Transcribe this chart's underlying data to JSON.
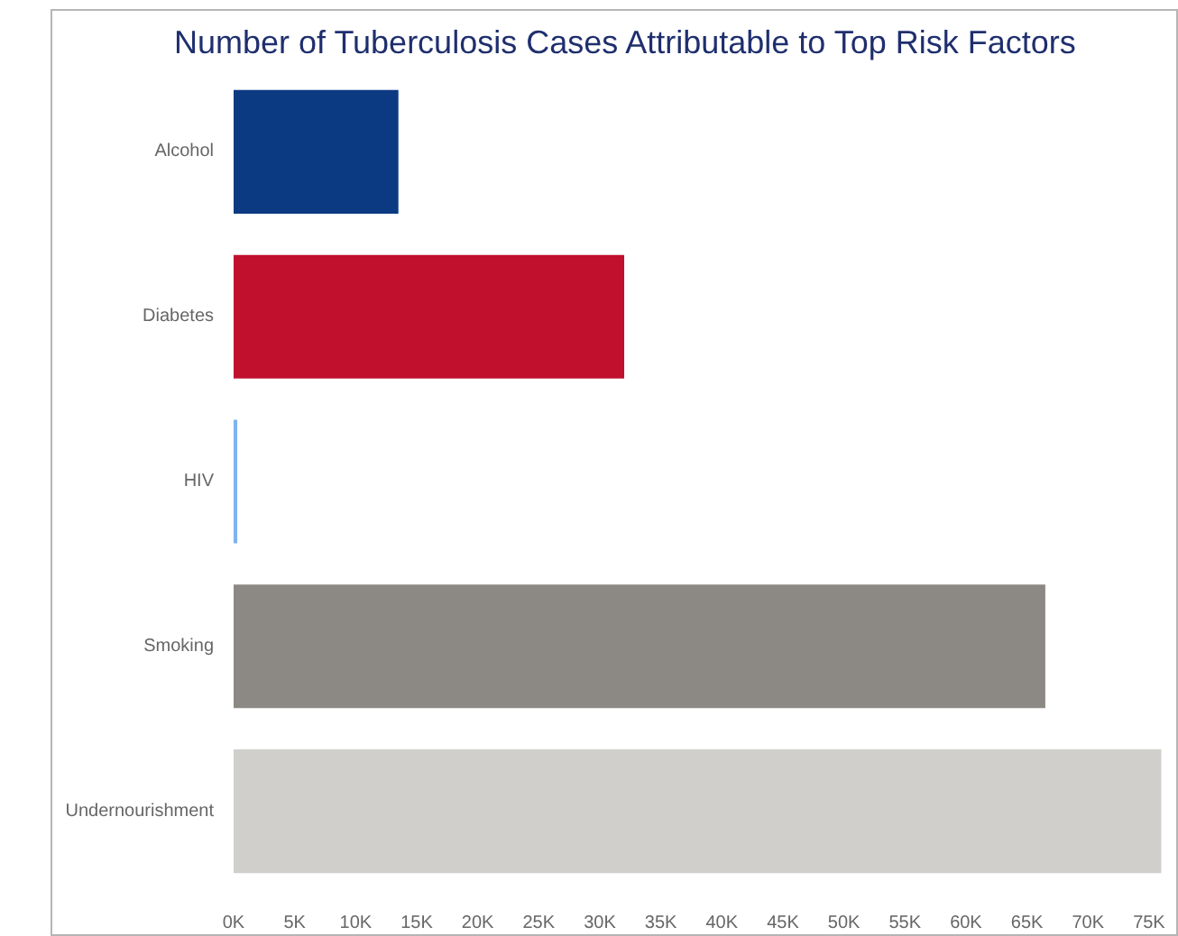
{
  "chart_data": {
    "type": "bar",
    "orientation": "horizontal",
    "title": "Number of Tuberculosis Cases Attributable to Top Risk Factors",
    "categories": [
      "Alcohol",
      "Diabetes",
      "HIV",
      "Smoking",
      "Undernourishment"
    ],
    "values": [
      13500,
      32000,
      300,
      66500,
      76000
    ],
    "colors": [
      "#0b3a82",
      "#c0102e",
      "#7fb3f0",
      "#8c8884",
      "#d0cfcb"
    ],
    "xlim": [
      0,
      77000
    ],
    "xticks": [
      {
        "value": 0,
        "label": "0K"
      },
      {
        "value": 5000,
        "label": "5K"
      },
      {
        "value": 10000,
        "label": "10K"
      },
      {
        "value": 15000,
        "label": "15K"
      },
      {
        "value": 20000,
        "label": "20K"
      },
      {
        "value": 25000,
        "label": "25K"
      },
      {
        "value": 30000,
        "label": "30K"
      },
      {
        "value": 35000,
        "label": "35K"
      },
      {
        "value": 40000,
        "label": "40K"
      },
      {
        "value": 45000,
        "label": "45K"
      },
      {
        "value": 50000,
        "label": "50K"
      },
      {
        "value": 55000,
        "label": "55K"
      },
      {
        "value": 60000,
        "label": "60K"
      },
      {
        "value": 65000,
        "label": "65K"
      },
      {
        "value": 70000,
        "label": "70K"
      },
      {
        "value": 75000,
        "label": "75K"
      }
    ]
  }
}
